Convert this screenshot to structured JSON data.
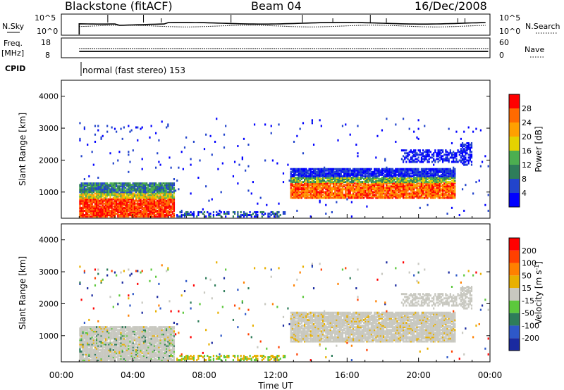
{
  "header": {
    "station": "Blackstone (fitACF)",
    "beam": "Beam 04",
    "date": "16/Dec/2008"
  },
  "status_panels": {
    "nsky_label": "N.Sky",
    "nsearch_label": "N.Search",
    "freq_label_top": "Freq.",
    "freq_label_unit": "[MHz]",
    "nave_label": "Nave",
    "cpid_label": "CPID",
    "cpid_text": "normal (fast stereo) 153",
    "nsky_ticks": [
      "10^5",
      "10^0"
    ],
    "nsearch_ticks": [
      "10^5",
      "10^0"
    ],
    "freq_ticks": [
      "18",
      "8"
    ],
    "nave_ticks": [
      "60",
      "0"
    ]
  },
  "chart_data": [
    {
      "type": "heatmap",
      "name": "power",
      "ylabel": "Slant Range [km]",
      "xlabel": "",
      "ylim": [
        180,
        4500
      ],
      "yticks": [
        1000,
        2000,
        3000,
        4000
      ],
      "xlim": [
        0,
        24
      ],
      "colorbar": {
        "label": "Power [dB]",
        "ticks": [
          "4",
          "8",
          "12",
          "16",
          "20",
          "24",
          "28"
        ],
        "colors": [
          "#0000ff",
          "#2244cc",
          "#2e7d5a",
          "#4caf50",
          "#e5d200",
          "#ffa000",
          "#ff6a00",
          "#ff0000"
        ]
      }
    },
    {
      "type": "heatmap",
      "name": "velocity",
      "ylabel": "Slant Range [km]",
      "xlabel": "Time UT",
      "ylim": [
        180,
        4500
      ],
      "yticks": [
        1000,
        2000,
        3000,
        4000
      ],
      "xlim": [
        0,
        24
      ],
      "xticks": [
        "00:00",
        "04:00",
        "08:00",
        "12:00",
        "16:00",
        "20:00",
        "00:00"
      ],
      "colorbar": {
        "label": "Velocity [m s^-1]",
        "ticks": [
          "200",
          "100",
          "50",
          "15",
          "-15",
          "-50",
          "-100",
          "-200"
        ],
        "colors": [
          "#1a2aa0",
          "#2e58c8",
          "#2e7d5a",
          "#5cc83c",
          "#c8c8c0",
          "#e8b000",
          "#ff8000",
          "#ff4000",
          "#ff0000"
        ]
      }
    }
  ]
}
